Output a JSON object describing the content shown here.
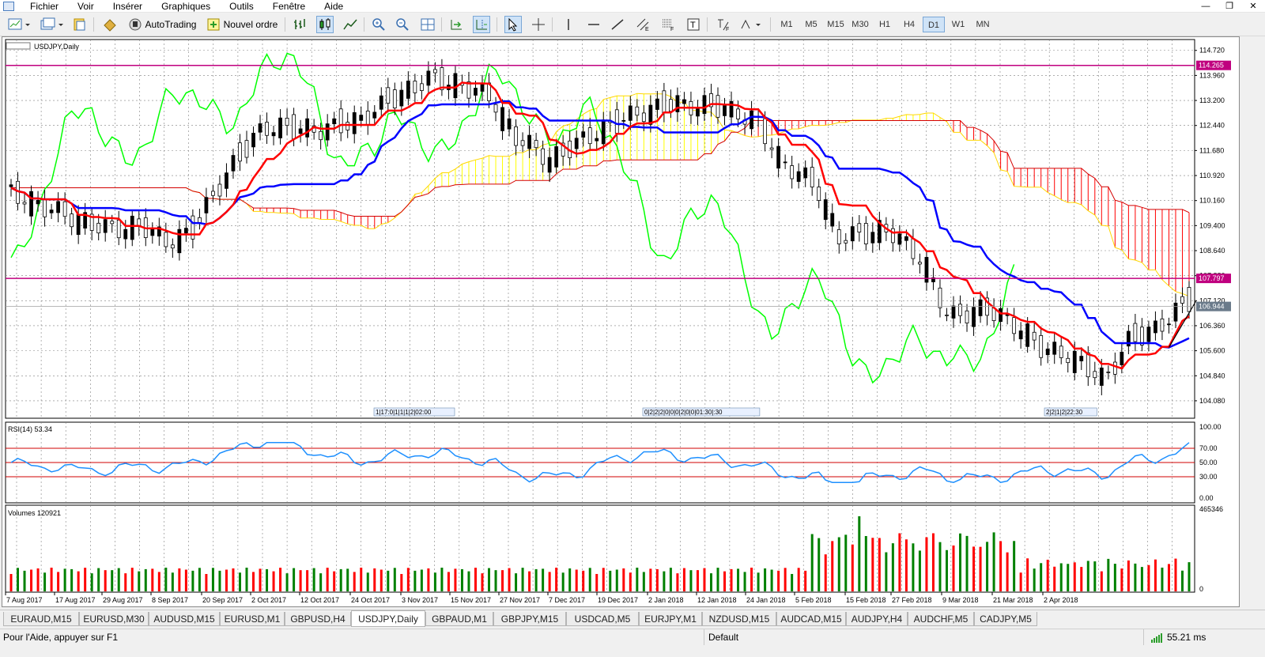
{
  "menu": [
    "Fichier",
    "Voir",
    "Insérer",
    "Graphiques",
    "Outils",
    "Fenêtre",
    "Aide"
  ],
  "toolbar": {
    "autotrading": "AutoTrading",
    "new_order": "Nouvel ordre",
    "timeframes": [
      "M1",
      "M5",
      "M15",
      "M30",
      "H1",
      "H4",
      "D1",
      "W1",
      "MN"
    ],
    "active_timeframe": "D1"
  },
  "chart": {
    "title": "USDJPY,Daily",
    "price_ticks": [
      "114.720",
      "113.960",
      "113.200",
      "112.440",
      "111.680",
      "110.920",
      "110.160",
      "109.400",
      "108.640",
      "107.880",
      "107.120",
      "106.360",
      "105.600",
      "104.840",
      "104.080"
    ],
    "hlines": [
      {
        "label": "114.265",
        "color": "#c0007f"
      },
      {
        "label": "107.797",
        "color": "#c0007f"
      }
    ],
    "current_price": "106.944",
    "date_labels": [
      "7 Aug 2017",
      "17 Aug 2017",
      "29 Aug 2017",
      "8 Sep 2017",
      "20 Sep 2017",
      "2 Oct 2017",
      "12 Oct 2017",
      "24 Oct 2017",
      "3 Nov 2017",
      "15 Nov 2017",
      "27 Nov 2017",
      "7 Dec 2017",
      "19 Dec 2017",
      "2 Jan 2018",
      "12 Jan 2018",
      "24 Jan 2018",
      "5 Feb 2018",
      "15 Feb 2018",
      "27 Feb 2018",
      "9 Mar 2018",
      "21 Mar 2018",
      "2 Apr 2018"
    ],
    "event_markers": [
      "1|17:0|1|1|1|2|02:00",
      "0|2|2|2|0|0|0|2|0|0|01:30|:30",
      "2|2|1|2|22:30"
    ],
    "rsi": {
      "label": "RSI(14) 53.34",
      "ticks": [
        "100.00",
        "70.00",
        "50.00",
        "30.00",
        "0.00"
      ]
    },
    "volumes": {
      "label": "Volumes 120921",
      "ticks": [
        "465346",
        "0"
      ]
    }
  },
  "colors": {
    "tenkan": "#ff0000",
    "kijun": "#0000ff",
    "chikou": "#00ff00",
    "cloud_bull": "#ffff00",
    "cloud_bear": "#ff0000",
    "vol_up": "#008000",
    "vol_down": "#ff0000",
    "rsi": "#1e90ff"
  },
  "tabs": [
    "EURAUD,M15",
    "EURUSD,M30",
    "AUDUSD,M15",
    "EURUSD,M1",
    "GBPUSD,H4",
    "USDJPY,Daily",
    "GBPAUD,M1",
    "GBPJPY,M15",
    "USDCAD,M5",
    "EURJPY,M1",
    "NZDUSD,M15",
    "AUDCAD,M15",
    "AUDJPY,H4",
    "AUDCHF,M5",
    "CADJPY,M5"
  ],
  "active_tab": "USDJPY,Daily",
  "status": {
    "help": "Pour l'Aide, appuyer sur F1",
    "profile": "Default",
    "ping": "55.21 ms"
  }
}
